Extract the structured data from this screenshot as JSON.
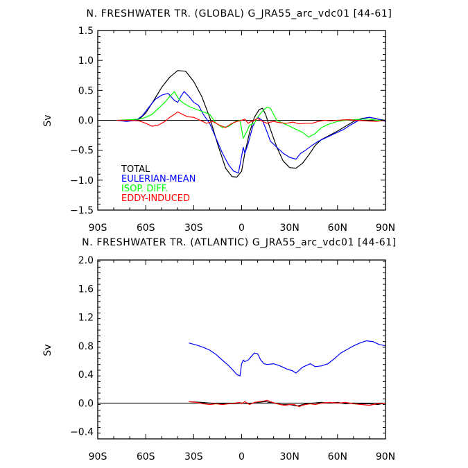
{
  "chart_data": [
    {
      "type": "line",
      "title": "N. FRESHWATER TR. (GLOBAL) G_JRA55_arc_vdc01 [44-61]",
      "ylabel": "Sv",
      "xlim": [
        -90,
        90
      ],
      "ylim": [
        -1.5,
        1.5
      ],
      "x_ticks": [
        {
          "v": -90,
          "label": "90S"
        },
        {
          "v": -60,
          "label": "60S"
        },
        {
          "v": -30,
          "label": "30S"
        },
        {
          "v": 0,
          "label": "0"
        },
        {
          "v": 30,
          "label": "30N"
        },
        {
          "v": 60,
          "label": "60N"
        },
        {
          "v": 90,
          "label": "90N"
        }
      ],
      "y_ticks": [
        {
          "v": 1.5,
          "label": "1.5"
        },
        {
          "v": 1.0,
          "label": "1.0"
        },
        {
          "v": 0.5,
          "label": "0.5"
        },
        {
          "v": 0.0,
          "label": "0.0"
        },
        {
          "v": -0.5,
          "label": "−0.5"
        },
        {
          "v": -1.0,
          "label": "−1.0"
        },
        {
          "v": -1.5,
          "label": "−1.5"
        }
      ],
      "legend_position": "lower-left",
      "series": [
        {
          "name": "TOTAL",
          "color": "#000000",
          "x": [
            -78,
            -70,
            -64,
            -60,
            -55,
            -50,
            -45,
            -40,
            -35,
            -30,
            -25,
            -20,
            -15,
            -10,
            -6,
            -3,
            0,
            2,
            5,
            8,
            11,
            13,
            15,
            18,
            22,
            26,
            30,
            34,
            38,
            42,
            46,
            50,
            55,
            60,
            65,
            70,
            75,
            80,
            85,
            90
          ],
          "y": [
            0,
            -0.01,
            0.02,
            0.12,
            0.33,
            0.55,
            0.72,
            0.83,
            0.82,
            0.65,
            0.4,
            0.05,
            -0.4,
            -0.8,
            -0.94,
            -0.95,
            -0.85,
            -0.55,
            -0.2,
            0.05,
            0.18,
            0.2,
            0.1,
            -0.15,
            -0.45,
            -0.68,
            -0.79,
            -0.8,
            -0.72,
            -0.58,
            -0.42,
            -0.32,
            -0.25,
            -0.18,
            -0.1,
            -0.02,
            0.03,
            0.05,
            0.02,
            0
          ]
        },
        {
          "name": "EULERIAN-MEAN",
          "color": "#0000ff",
          "x": [
            -78,
            -72,
            -66,
            -62,
            -58,
            -54,
            -50,
            -46,
            -42,
            -40,
            -38,
            -36,
            -33,
            -30,
            -27,
            -24,
            -20,
            -16,
            -12,
            -8,
            -5,
            -2,
            0,
            1,
            2,
            4,
            7,
            10,
            13,
            16,
            18,
            22,
            26,
            30,
            34,
            37,
            40,
            44,
            48,
            52,
            56,
            60,
            64,
            68,
            72,
            76,
            80,
            84,
            88,
            90
          ],
          "y": [
            0,
            -0.02,
            0,
            0.08,
            0.22,
            0.35,
            0.42,
            0.45,
            0.33,
            0.3,
            0.4,
            0.48,
            0.4,
            0.3,
            0.25,
            0.1,
            -0.05,
            -0.3,
            -0.55,
            -0.75,
            -0.85,
            -0.88,
            -0.6,
            -0.45,
            -0.55,
            -0.4,
            -0.1,
            0.05,
            0,
            -0.2,
            -0.35,
            -0.45,
            -0.55,
            -0.62,
            -0.65,
            -0.55,
            -0.5,
            -0.42,
            -0.35,
            -0.3,
            -0.25,
            -0.2,
            -0.15,
            -0.08,
            -0.02,
            0.03,
            0.05,
            0.03,
            0,
            -0.02
          ]
        },
        {
          "name": "ISOP. DIFF.",
          "color": "#00ff00",
          "x": [
            -78,
            -70,
            -64,
            -60,
            -56,
            -52,
            -48,
            -45,
            -43,
            -42,
            -40,
            -38,
            -36,
            -32,
            -28,
            -24,
            -20,
            -16,
            -12,
            -8,
            -4,
            -1,
            1,
            3,
            5,
            8,
            10,
            12,
            14,
            16,
            18,
            20,
            22,
            26,
            30,
            34,
            38,
            42,
            46,
            50,
            55,
            60,
            65,
            70,
            75,
            80,
            85,
            90
          ],
          "y": [
            0,
            0.01,
            0.02,
            0.05,
            0.1,
            0.2,
            0.3,
            0.4,
            0.45,
            0.48,
            0.38,
            0.32,
            0.28,
            0.22,
            0.18,
            0.14,
            0.1,
            -0.05,
            -0.12,
            -0.1,
            -0.02,
            0,
            -0.3,
            -0.2,
            -0.08,
            -0.05,
            0.05,
            0.12,
            0.18,
            0.22,
            0.2,
            0.1,
            0,
            -0.05,
            -0.1,
            -0.15,
            -0.2,
            -0.28,
            -0.22,
            -0.12,
            -0.06,
            -0.02,
            0,
            0.01,
            0.02,
            0.02,
            0,
            0
          ]
        },
        {
          "name": "EDDY-INDUCED",
          "color": "#ff0000",
          "x": [
            -78,
            -70,
            -64,
            -60,
            -56,
            -52,
            -48,
            -45,
            -42,
            -40,
            -37,
            -34,
            -30,
            -26,
            -22,
            -18,
            -14,
            -10,
            -6,
            -3,
            0,
            2,
            4,
            6,
            8,
            10,
            12,
            14,
            16,
            18,
            20,
            24,
            28,
            32,
            36,
            40,
            44,
            48,
            52,
            56,
            60,
            66,
            72,
            78,
            84,
            90
          ],
          "y": [
            0,
            0,
            -0.01,
            -0.05,
            -0.1,
            -0.08,
            -0.02,
            0.05,
            0.1,
            0.14,
            0.1,
            0.06,
            0.05,
            0,
            -0.05,
            -0.02,
            -0.08,
            -0.12,
            -0.05,
            -0.02,
            0,
            0.02,
            -0.05,
            -0.02,
            0,
            0.03,
            0,
            -0.03,
            -0.05,
            -0.03,
            -0.02,
            -0.04,
            -0.05,
            -0.03,
            -0.06,
            -0.05,
            -0.05,
            -0.02,
            0,
            -0.01,
            0,
            0.01,
            0,
            -0.01,
            -0.02,
            0
          ]
        }
      ]
    },
    {
      "type": "line",
      "title": "N. FRESHWATER TR. (ATLANTIC) G_JRA55_arc_vdc01 [44-61]",
      "ylabel": "Sv",
      "xlim": [
        -90,
        90
      ],
      "ylim": [
        -0.5,
        2.0
      ],
      "x_ticks": [
        {
          "v": -90,
          "label": "90S"
        },
        {
          "v": -60,
          "label": "60S"
        },
        {
          "v": -30,
          "label": "30S"
        },
        {
          "v": 0,
          "label": "0"
        },
        {
          "v": 30,
          "label": "30N"
        },
        {
          "v": 60,
          "label": "60N"
        },
        {
          "v": 90,
          "label": "90N"
        }
      ],
      "y_ticks": [
        {
          "v": 2.0,
          "label": "2.0"
        },
        {
          "v": 1.6,
          "label": "1.6"
        },
        {
          "v": 1.2,
          "label": "1.2"
        },
        {
          "v": 0.8,
          "label": "0.8"
        },
        {
          "v": 0.4,
          "label": "0.4"
        },
        {
          "v": 0.0,
          "label": "0.0"
        },
        {
          "v": -0.4,
          "label": "−0.4"
        }
      ],
      "series": [
        {
          "name": "EULERIAN-MEAN",
          "color": "#0000ff",
          "x": [
            -33,
            -28,
            -24,
            -20,
            -16,
            -12,
            -8,
            -5,
            -3,
            -1,
            0,
            1,
            2,
            4,
            6,
            8,
            10,
            12,
            14,
            16,
            20,
            24,
            28,
            32,
            34,
            36,
            38,
            40,
            43,
            46,
            50,
            54,
            58,
            62,
            66,
            70,
            74,
            78,
            82,
            86,
            90
          ],
          "y": [
            0.84,
            0.81,
            0.78,
            0.74,
            0.68,
            0.6,
            0.52,
            0.45,
            0.4,
            0.38,
            0.55,
            0.6,
            0.58,
            0.6,
            0.65,
            0.7,
            0.69,
            0.6,
            0.55,
            0.54,
            0.55,
            0.52,
            0.48,
            0.45,
            0.42,
            0.46,
            0.5,
            0.52,
            0.55,
            0.51,
            0.52,
            0.55,
            0.62,
            0.7,
            0.75,
            0.8,
            0.84,
            0.87,
            0.86,
            0.82,
            0.8
          ]
        },
        {
          "name": "TOTAL",
          "color": "#000000",
          "x": [
            -33,
            -25,
            -15,
            -5,
            0,
            5,
            10,
            15,
            20,
            25,
            30,
            35,
            40,
            45,
            50,
            55,
            60,
            65,
            70,
            75,
            80,
            85,
            90
          ],
          "y": [
            0.02,
            0.01,
            -0.01,
            -0.01,
            0,
            -0.01,
            0.01,
            0.02,
            0,
            -0.02,
            -0.02,
            -0.04,
            -0.01,
            0,
            0.01,
            0,
            0.01,
            -0.01,
            0,
            -0.01,
            -0.01,
            -0.02,
            0
          ]
        },
        {
          "name": "EDDY-INDUCED",
          "color": "#ff0000",
          "x": [
            -33,
            -28,
            -24,
            -20,
            -16,
            -12,
            -8,
            -4,
            -1,
            0,
            2,
            5,
            8,
            11,
            14,
            16,
            18,
            21,
            24,
            27,
            30,
            33,
            36,
            38,
            40,
            43,
            46,
            50,
            55,
            60,
            65,
            70,
            75,
            80,
            85,
            90
          ],
          "y": [
            0.02,
            0.01,
            -0.01,
            -0.02,
            -0.01,
            -0.02,
            -0.01,
            0,
            0.01,
            -0.01,
            0.02,
            -0.02,
            0.01,
            0.02,
            0.03,
            0.04,
            0.02,
            0,
            -0.02,
            -0.03,
            -0.02,
            -0.02,
            -0.05,
            -0.03,
            -0.02,
            -0.01,
            -0.02,
            0,
            0.01,
            0,
            0.01,
            -0.01,
            -0.02,
            -0.03,
            -0.01,
            0
          ]
        }
      ]
    }
  ]
}
